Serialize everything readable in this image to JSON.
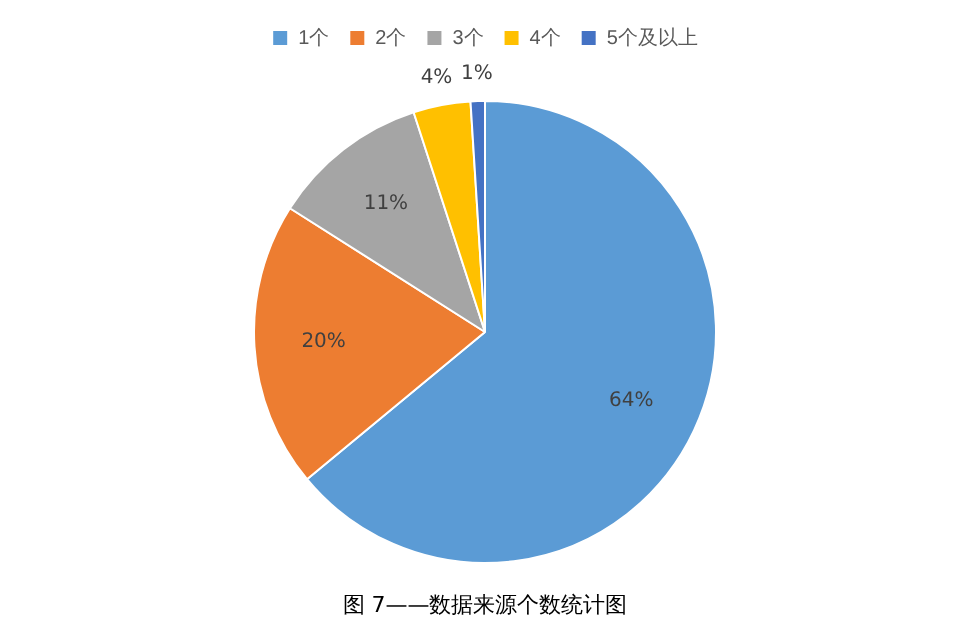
{
  "chart_data": {
    "type": "pie",
    "categories": [
      "1个",
      "2个",
      "3个",
      "4个",
      "5个及以上"
    ],
    "values": [
      64,
      20,
      11,
      4,
      1
    ],
    "colors": [
      "#5b9bd5",
      "#ed7d31",
      "#a5a5a5",
      "#ffc000",
      "#4472c4"
    ],
    "value_labels": [
      "64%",
      "20%",
      "11%",
      "4%",
      "1%"
    ],
    "legend": "top",
    "annotations": [
      "图 7——数据来源个数统计图"
    ]
  }
}
